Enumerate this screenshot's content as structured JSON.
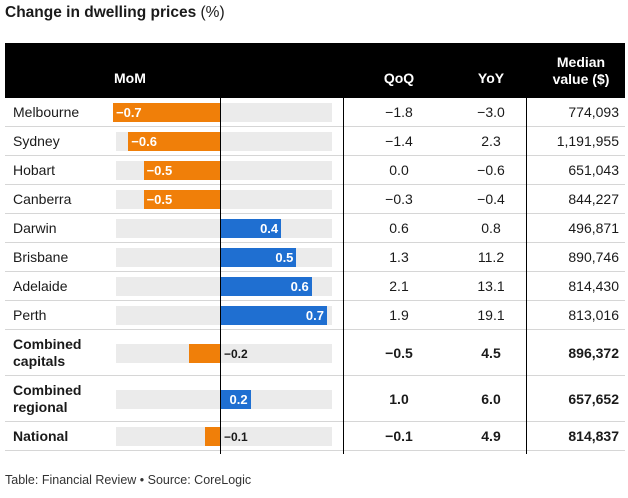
{
  "title": "Change in dwelling prices",
  "title_unit": "(%)",
  "headers": {
    "mom": "MoM",
    "qoq": "QoQ",
    "yoy": "YoY",
    "median_line1": "Median",
    "median_line2": "value ($)"
  },
  "rows": [
    {
      "name": "Melbourne",
      "mom": "−0.7",
      "qoq": "−1.8",
      "yoy": "−3.0",
      "median": "774,093"
    },
    {
      "name": "Sydney",
      "mom": "−0.6",
      "qoq": "−1.4",
      "yoy": "2.3",
      "median": "1,191,955"
    },
    {
      "name": "Hobart",
      "mom": "−0.5",
      "qoq": "0.0",
      "yoy": "−0.6",
      "median": "651,043"
    },
    {
      "name": "Canberra",
      "mom": "−0.5",
      "qoq": "−0.3",
      "yoy": "−0.4",
      "median": "844,227"
    },
    {
      "name": "Darwin",
      "mom": "0.4",
      "qoq": "0.6",
      "yoy": "0.8",
      "median": "496,871"
    },
    {
      "name": "Brisbane",
      "mom": "0.5",
      "qoq": "1.3",
      "yoy": "11.2",
      "median": "890,746"
    },
    {
      "name": "Adelaide",
      "mom": "0.6",
      "qoq": "2.1",
      "yoy": "13.1",
      "median": "814,430"
    },
    {
      "name": "Perth",
      "mom": "0.7",
      "qoq": "1.9",
      "yoy": "19.1",
      "median": "813,016"
    },
    {
      "name_line1": "Combined",
      "name_line2": "capitals",
      "mom": "−0.2",
      "qoq": "−0.5",
      "yoy": "4.5",
      "median": "896,372"
    },
    {
      "name_line1": "Combined",
      "name_line2": "regional",
      "mom": "0.2",
      "qoq": "1.0",
      "yoy": "6.0",
      "median": "657,652"
    },
    {
      "name": "National",
      "mom": "−0.1",
      "qoq": "−0.1",
      "yoy": "4.9",
      "median": "814,837"
    }
  ],
  "chart_data": {
    "type": "bar",
    "title": "Change in dwelling prices (%)",
    "xlabel": "MoM",
    "categories": [
      "Melbourne",
      "Sydney",
      "Hobart",
      "Canberra",
      "Darwin",
      "Brisbane",
      "Adelaide",
      "Perth",
      "Combined capitals",
      "Combined regional",
      "National"
    ],
    "values": [
      -0.7,
      -0.6,
      -0.5,
      -0.5,
      0.4,
      0.5,
      0.6,
      0.7,
      -0.2,
      0.2,
      -0.1
    ],
    "xlim": [
      -0.7,
      0.7
    ],
    "colors": {
      "negative": "#f07f09",
      "positive": "#1f6fd1",
      "track": "#ebebeb"
    }
  },
  "footer": "Table: Financial Review • Source: CoreLogic"
}
